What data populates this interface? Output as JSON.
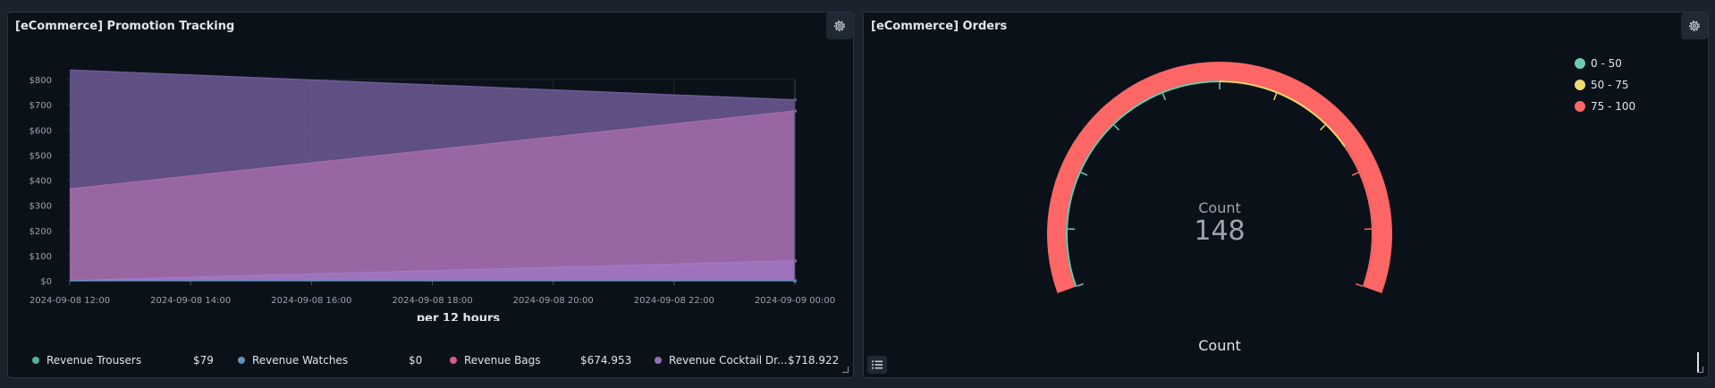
{
  "promotion_panel": {
    "title": "[eCommerce] Promotion Tracking",
    "gear_icon": "gear-icon",
    "legend": [
      {
        "label": "Revenue Trousers",
        "value": "$79",
        "color": "#54b399"
      },
      {
        "label": "Revenue Watches",
        "value": "$0",
        "color": "#6092c0"
      },
      {
        "label": "Revenue Bags",
        "value": "$674.953",
        "color": "#d36086"
      },
      {
        "label": "Revenue Cocktail Dr...",
        "value": "$718.922",
        "color": "#9170b8"
      }
    ]
  },
  "chart_data": [
    {
      "type": "area",
      "title": "",
      "xlabel": "per 12 hours",
      "ylabel": "",
      "x_ticks": [
        "2024-09-08 12:00",
        "2024-09-08 14:00",
        "2024-09-08 16:00",
        "2024-09-08 18:00",
        "2024-09-08 20:00",
        "2024-09-08 22:00",
        "2024-09-09 00:00"
      ],
      "y_ticks": [
        "$0",
        "$100",
        "$200",
        "$300",
        "$400",
        "$500",
        "$600",
        "$700",
        "$800"
      ],
      "ylim": [
        0,
        850
      ],
      "x": [
        "2024-09-08 12:00",
        "2024-09-09 00:00"
      ],
      "series": [
        {
          "name": "Revenue Trousers",
          "values": [
            0,
            79
          ],
          "color": "#a279c7"
        },
        {
          "name": "Revenue Watches",
          "values": [
            0,
            0
          ],
          "color": "#6092c0"
        },
        {
          "name": "Revenue Bags",
          "values": [
            365,
            675
          ],
          "color": "#a26aa8"
        },
        {
          "name": "Revenue Cocktail Dr...",
          "values": [
            838,
            719
          ],
          "color": "#6e5a96"
        }
      ],
      "grid": true
    },
    {
      "type": "gauge",
      "title": "Count",
      "value_label": "Count",
      "value": 148,
      "ranges": [
        {
          "label": "0 - 50",
          "color": "#6dccb1"
        },
        {
          "label": "50 - 75",
          "color": "#f1d86f"
        },
        {
          "label": "75 - 100",
          "color": "#ff6666"
        }
      ]
    }
  ],
  "orders_panel": {
    "title": "[eCommerce] Orders",
    "gauge_label": "Count",
    "gauge_value": "148",
    "bottom_label": "Count",
    "legend": [
      {
        "label": "0 - 50",
        "color": "#6dccb1"
      },
      {
        "label": "50 - 75",
        "color": "#f1d86f"
      },
      {
        "label": "75 - 100",
        "color": "#ff6666"
      }
    ]
  }
}
